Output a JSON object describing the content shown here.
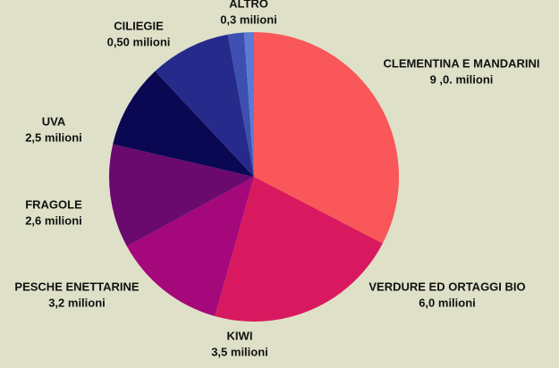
{
  "chart_data": {
    "type": "pie",
    "categories": [
      "CLEMENTINA E MANDARINI",
      "VERDURE ED ORTAGGI BIO",
      "KIWI",
      "PESCHE ENETTARINE",
      "FRAGOLE",
      "UVA",
      "CILIEGIE",
      "ALTRO"
    ],
    "values": [
      9.0,
      6.0,
      3.5,
      3.2,
      2.6,
      2.5,
      0.5,
      0.3
    ],
    "value_labels": [
      "9 ,0. milioni",
      "6,0 milioni",
      "3,5 milioni",
      "3,2 milioni",
      "2,6 milioni",
      "2,5 milioni",
      "0,50 milioni",
      "0,3 milioni"
    ],
    "colors": [
      "#f9575a",
      "#d9195f",
      "#a4087a",
      "#6a0a6e",
      "#0a0753",
      "#262a8a",
      "#3d4fb0",
      "#5b7bd6"
    ]
  }
}
